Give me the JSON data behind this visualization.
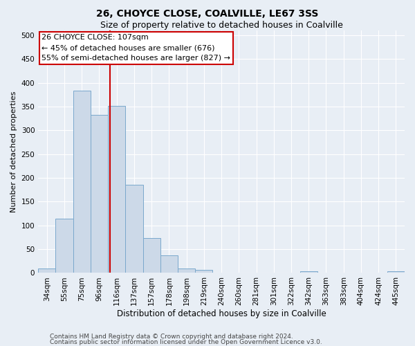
{
  "title1": "26, CHOYCE CLOSE, COALVILLE, LE67 3SS",
  "title2": "Size of property relative to detached houses in Coalville",
  "xlabel": "Distribution of detached houses by size in Coalville",
  "ylabel": "Number of detached properties",
  "footer1": "Contains HM Land Registry data © Crown copyright and database right 2024.",
  "footer2": "Contains public sector information licensed under the Open Government Licence v3.0.",
  "categories": [
    "34sqm",
    "55sqm",
    "75sqm",
    "96sqm",
    "116sqm",
    "137sqm",
    "157sqm",
    "178sqm",
    "198sqm",
    "219sqm",
    "240sqm",
    "260sqm",
    "281sqm",
    "301sqm",
    "322sqm",
    "342sqm",
    "363sqm",
    "383sqm",
    "404sqm",
    "424sqm",
    "445sqm"
  ],
  "values": [
    10,
    114,
    383,
    333,
    352,
    185,
    74,
    37,
    10,
    6,
    1,
    1,
    0,
    0,
    0,
    3,
    0,
    0,
    0,
    0,
    3
  ],
  "bar_color": "#ccd9e8",
  "bar_edge_color": "#7aa8cc",
  "vline_x": 3.62,
  "vline_color": "#cc0000",
  "annotation_line1": "26 CHOYCE CLOSE: 107sqm",
  "annotation_line2": "← 45% of detached houses are smaller (676)",
  "annotation_line3": "55% of semi-detached houses are larger (827) →",
  "ylim": [
    0,
    510
  ],
  "yticks": [
    0,
    50,
    100,
    150,
    200,
    250,
    300,
    350,
    400,
    450,
    500
  ],
  "bg_color": "#e8eef5",
  "plot_bg_color": "#e8eef5",
  "grid_color": "#ffffff",
  "title1_fontsize": 10,
  "title2_fontsize": 9,
  "xlabel_fontsize": 8.5,
  "ylabel_fontsize": 8,
  "tick_fontsize": 7.5,
  "annotation_fontsize": 8,
  "footer_fontsize": 6.5
}
